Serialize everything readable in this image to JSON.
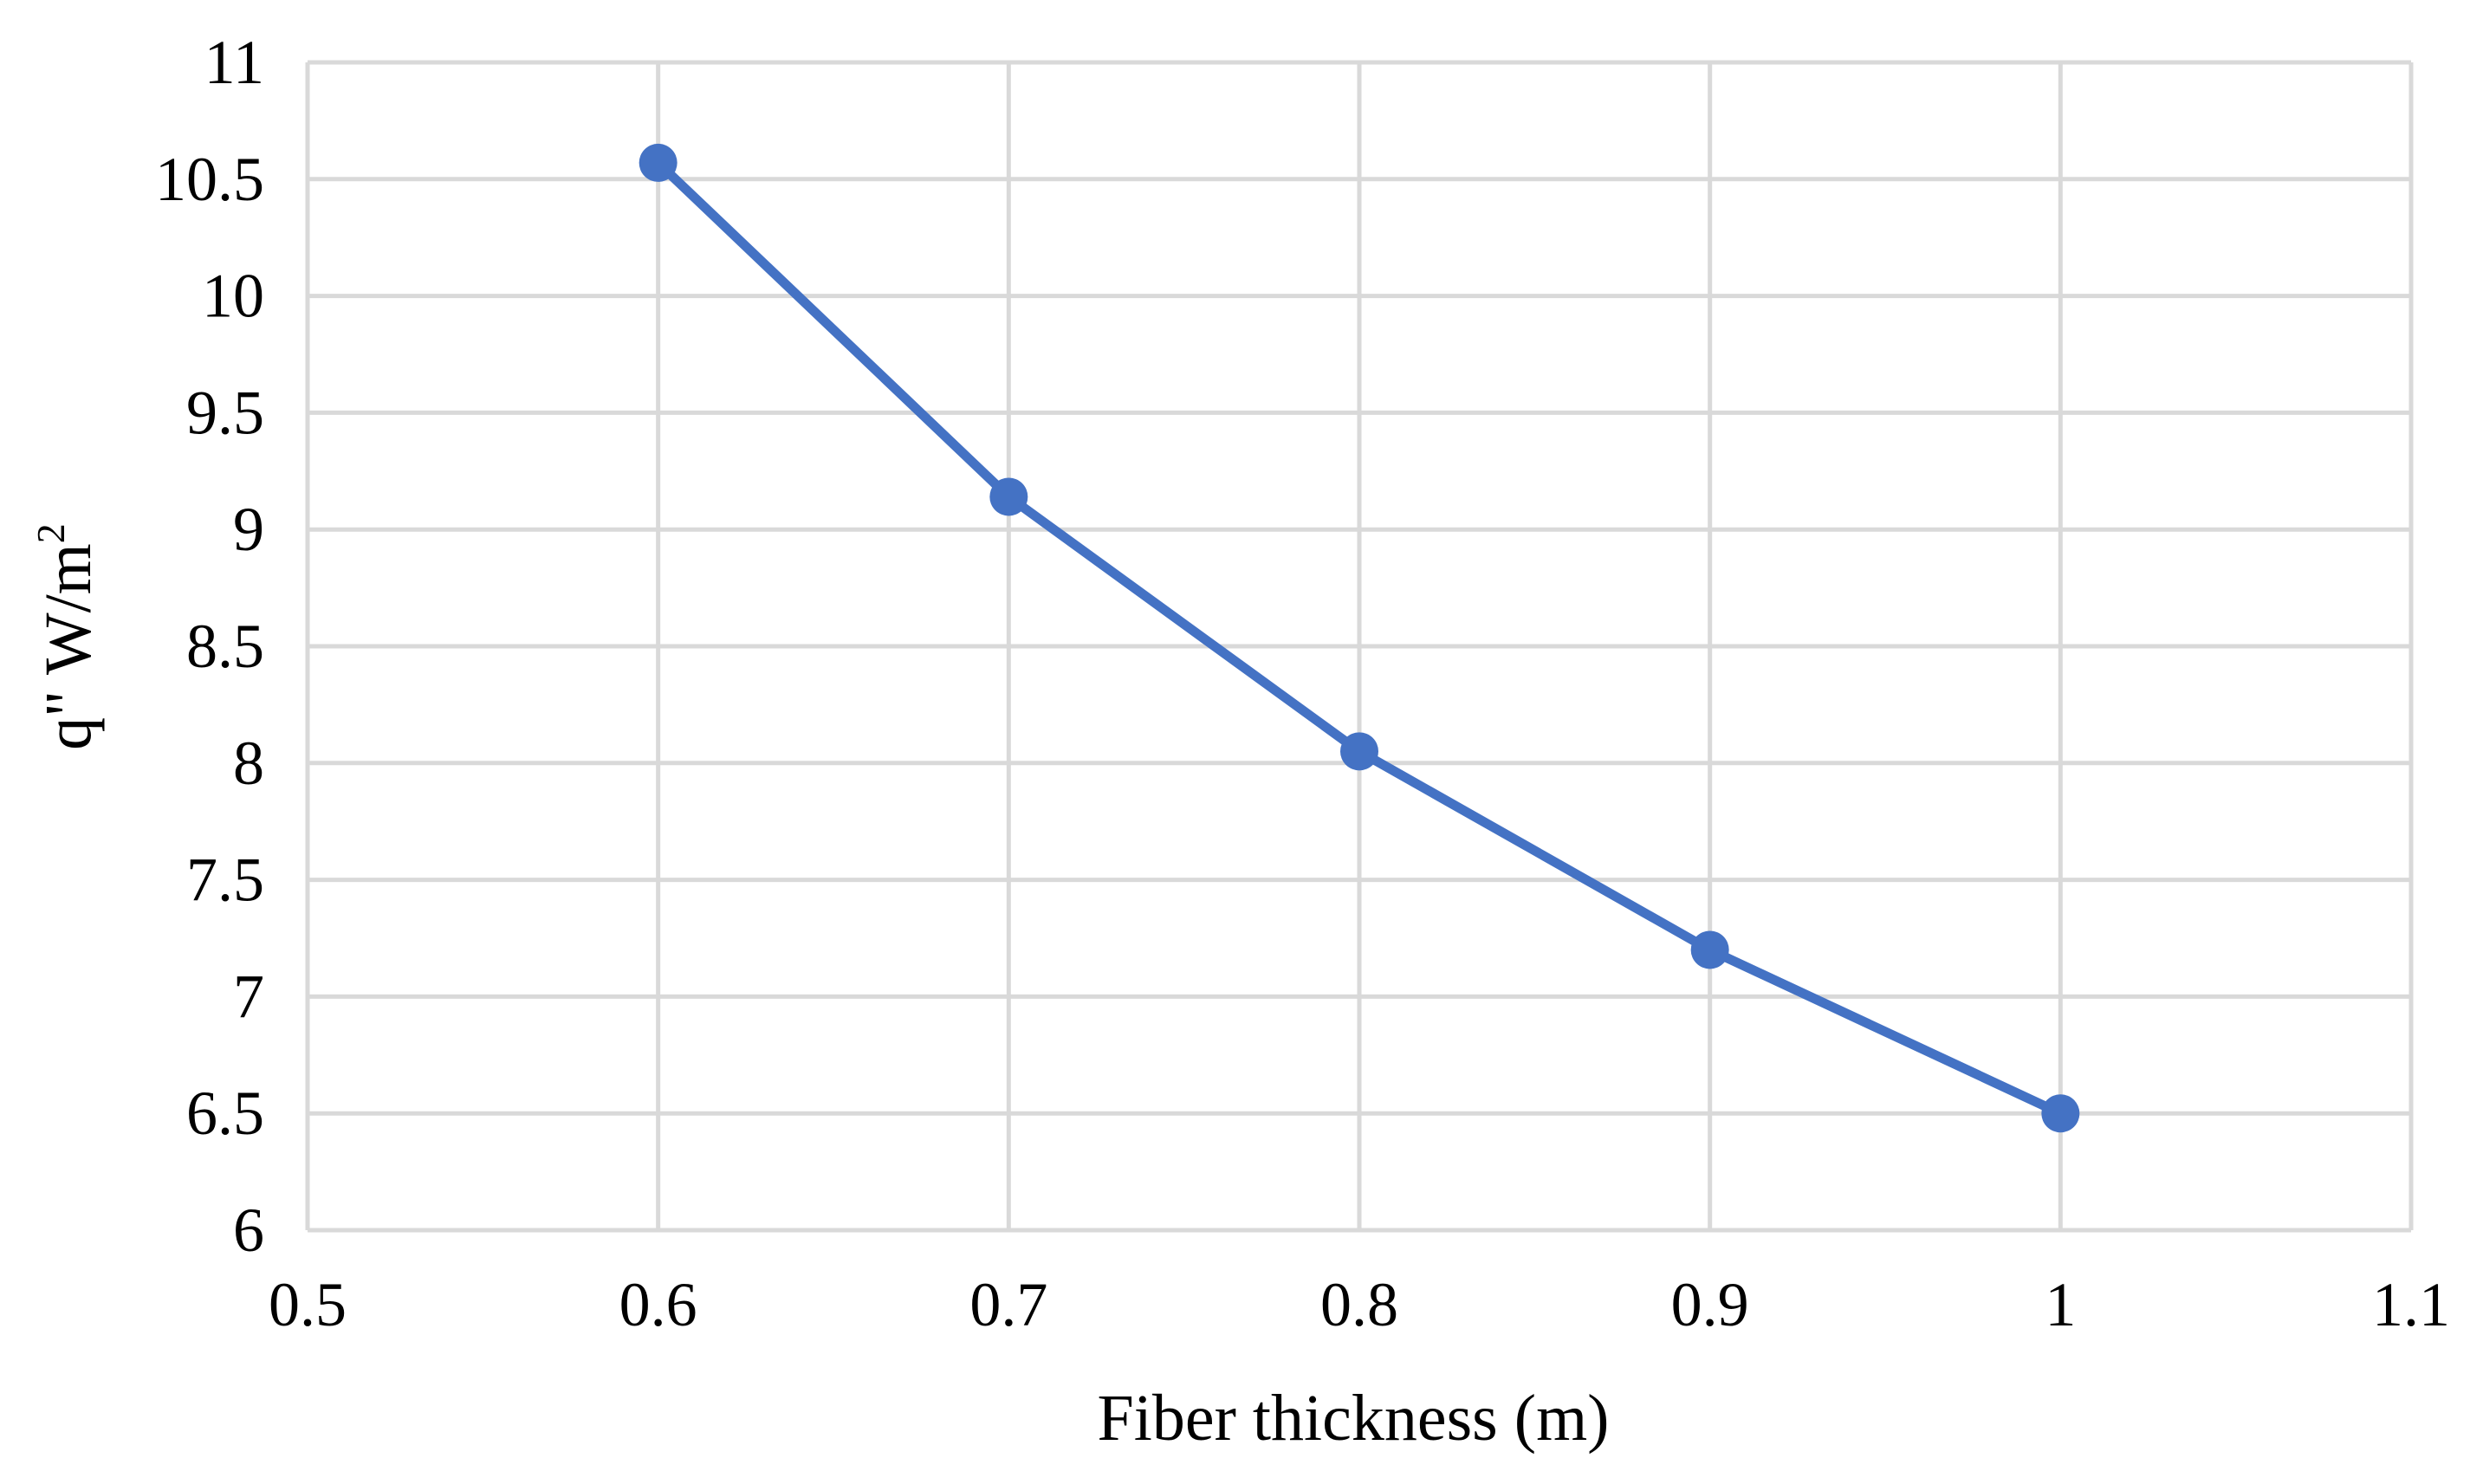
{
  "chart_data": {
    "type": "line",
    "xlabel": "Fiber thickness (m)",
    "ylabel_main": "q\" W/m",
    "ylabel_sup": "2",
    "xlim": [
      0.5,
      1.1
    ],
    "ylim": [
      6,
      11
    ],
    "x_ticks": [
      "0.5",
      "0.6",
      "0.7",
      "0.8",
      "0.9",
      "1",
      "1.1"
    ],
    "y_ticks": [
      "6",
      "6.5",
      "7",
      "7.5",
      "8",
      "8.5",
      "9",
      "9.5",
      "10",
      "10.5",
      "11"
    ],
    "grid": true,
    "legend": "none",
    "series": [
      {
        "color": "#4472c4",
        "points": [
          {
            "x": 0.6,
            "y": 10.57
          },
          {
            "x": 0.7,
            "y": 9.14
          },
          {
            "x": 0.8,
            "y": 8.05
          },
          {
            "x": 0.9,
            "y": 7.2
          },
          {
            "x": 1.0,
            "y": 6.5
          }
        ]
      }
    ]
  }
}
